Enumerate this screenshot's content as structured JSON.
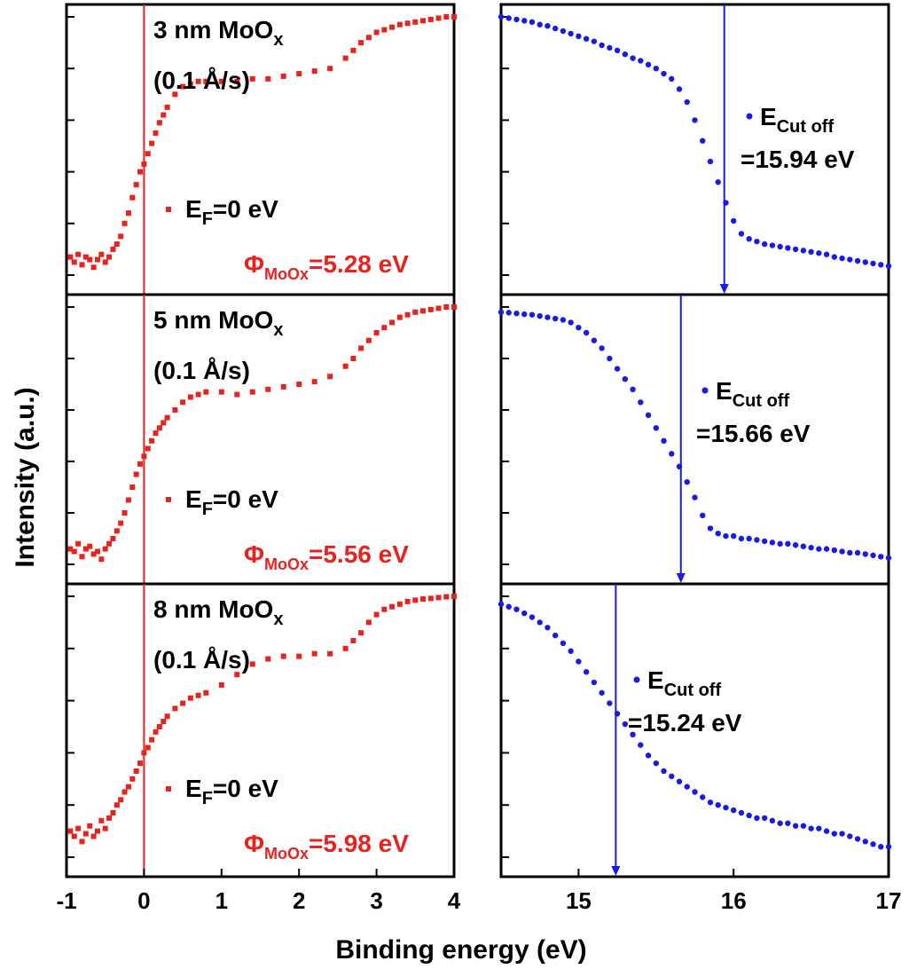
{
  "colors": {
    "left_series": "#e8221c",
    "right_series": "#1a1ae6",
    "frame": "#000000"
  },
  "shared_ylabel": "Intensity (a.u.)",
  "shared_xlabel": "Binding energy (eV)",
  "chart_data": [
    {
      "type": "scatter",
      "column": "left",
      "row": 1,
      "xlim": [
        -1,
        4
      ],
      "ylim": [
        0,
        1
      ],
      "title_main": "3 nm MoO",
      "title_sub": "x",
      "rate": "(0.1 Å/s)",
      "legend_main": "E",
      "legend_sub": "F",
      "legend_rest": "=0 eV",
      "annot_main": "Φ",
      "annot_sub": "MoOx",
      "annot_rest": "=5.28 eV",
      "ref_line_x": 0,
      "points_x": [
        -0.95,
        -0.9,
        -0.85,
        -0.8,
        -0.75,
        -0.7,
        -0.65,
        -0.6,
        -0.55,
        -0.5,
        -0.45,
        -0.4,
        -0.35,
        -0.3,
        -0.25,
        -0.2,
        -0.15,
        -0.1,
        -0.05,
        0.0,
        0.05,
        0.1,
        0.15,
        0.2,
        0.25,
        0.3,
        0.4,
        0.5,
        0.6,
        0.7,
        0.8,
        1.0,
        1.2,
        1.4,
        1.6,
        1.8,
        2.0,
        2.2,
        2.4,
        2.6,
        2.7,
        2.8,
        2.9,
        3.0,
        3.1,
        3.2,
        3.3,
        3.4,
        3.5,
        3.6,
        3.7,
        3.8,
        3.9,
        4.0
      ],
      "points_y": [
        0.07,
        0.05,
        0.08,
        0.04,
        0.07,
        0.06,
        0.03,
        0.06,
        0.08,
        0.05,
        0.07,
        0.1,
        0.12,
        0.15,
        0.2,
        0.24,
        0.3,
        0.35,
        0.4,
        0.43,
        0.47,
        0.51,
        0.55,
        0.59,
        0.62,
        0.65,
        0.7,
        0.73,
        0.74,
        0.75,
        0.75,
        0.75,
        0.75,
        0.76,
        0.76,
        0.77,
        0.78,
        0.79,
        0.8,
        0.84,
        0.87,
        0.9,
        0.92,
        0.94,
        0.95,
        0.96,
        0.97,
        0.975,
        0.98,
        0.985,
        0.99,
        0.995,
        1.0,
        1.0
      ]
    },
    {
      "type": "scatter",
      "column": "left",
      "row": 2,
      "xlim": [
        -1,
        4
      ],
      "ylim": [
        0,
        1
      ],
      "title_main": "5 nm MoO",
      "title_sub": "x",
      "rate": "(0.1 Å/s)",
      "legend_main": "E",
      "legend_sub": "F",
      "legend_rest": "=0 eV",
      "annot_main": "Φ",
      "annot_sub": "MoOx",
      "annot_rest": "=5.56 eV",
      "ref_line_x": 0,
      "points_x": [
        -0.95,
        -0.9,
        -0.85,
        -0.8,
        -0.75,
        -0.7,
        -0.65,
        -0.6,
        -0.55,
        -0.5,
        -0.45,
        -0.4,
        -0.35,
        -0.3,
        -0.25,
        -0.2,
        -0.15,
        -0.1,
        -0.05,
        0.0,
        0.05,
        0.1,
        0.15,
        0.2,
        0.25,
        0.3,
        0.4,
        0.5,
        0.6,
        0.7,
        0.8,
        1.0,
        1.2,
        1.4,
        1.6,
        1.8,
        2.0,
        2.2,
        2.4,
        2.6,
        2.7,
        2.8,
        2.9,
        3.0,
        3.1,
        3.2,
        3.3,
        3.4,
        3.5,
        3.6,
        3.7,
        3.8,
        3.9,
        4.0
      ],
      "points_y": [
        0.06,
        0.05,
        0.08,
        0.03,
        0.06,
        0.07,
        0.04,
        0.05,
        0.02,
        0.06,
        0.08,
        0.1,
        0.13,
        0.16,
        0.2,
        0.25,
        0.3,
        0.35,
        0.39,
        0.42,
        0.45,
        0.48,
        0.51,
        0.53,
        0.55,
        0.57,
        0.6,
        0.63,
        0.65,
        0.66,
        0.67,
        0.67,
        0.66,
        0.67,
        0.68,
        0.69,
        0.7,
        0.71,
        0.73,
        0.77,
        0.8,
        0.84,
        0.87,
        0.9,
        0.92,
        0.94,
        0.96,
        0.97,
        0.98,
        0.985,
        0.99,
        0.995,
        1.0,
        1.0
      ]
    },
    {
      "type": "scatter",
      "column": "left",
      "row": 3,
      "xlim": [
        -1,
        4
      ],
      "ylim": [
        0,
        1
      ],
      "title_main": "8 nm MoO",
      "title_sub": "x",
      "rate": "(0.1 Å/s)",
      "legend_main": "E",
      "legend_sub": "F",
      "legend_rest": "=0 eV",
      "annot_main": "Φ",
      "annot_sub": "MoOx",
      "annot_rest": "=5.98 eV",
      "ref_line_x": 0,
      "points_x": [
        -0.95,
        -0.9,
        -0.85,
        -0.8,
        -0.75,
        -0.7,
        -0.65,
        -0.6,
        -0.55,
        -0.5,
        -0.45,
        -0.4,
        -0.35,
        -0.3,
        -0.25,
        -0.2,
        -0.15,
        -0.1,
        -0.05,
        0.0,
        0.05,
        0.1,
        0.15,
        0.2,
        0.25,
        0.3,
        0.4,
        0.5,
        0.6,
        0.7,
        0.8,
        1.0,
        1.2,
        1.4,
        1.6,
        1.8,
        2.0,
        2.2,
        2.4,
        2.6,
        2.7,
        2.8,
        2.9,
        3.0,
        3.1,
        3.2,
        3.3,
        3.4,
        3.5,
        3.6,
        3.7,
        3.8,
        3.9,
        4.0
      ],
      "points_y": [
        0.1,
        0.08,
        0.11,
        0.06,
        0.09,
        0.12,
        0.08,
        0.1,
        0.14,
        0.11,
        0.15,
        0.17,
        0.2,
        0.22,
        0.25,
        0.27,
        0.3,
        0.33,
        0.36,
        0.4,
        0.42,
        0.45,
        0.48,
        0.5,
        0.52,
        0.54,
        0.57,
        0.59,
        0.61,
        0.62,
        0.63,
        0.66,
        0.7,
        0.74,
        0.76,
        0.77,
        0.77,
        0.78,
        0.78,
        0.8,
        0.83,
        0.86,
        0.9,
        0.93,
        0.95,
        0.96,
        0.97,
        0.98,
        0.985,
        0.99,
        0.992,
        0.995,
        0.998,
        1.0
      ]
    },
    {
      "type": "scatter",
      "column": "right",
      "row": 1,
      "xlim": [
        14.5,
        17
      ],
      "ylim": [
        0,
        1
      ],
      "legend_main": "E",
      "legend_sub": "Cut off",
      "value_text": "=15.94 eV",
      "cutoff_x": 15.94,
      "points_x": [
        14.5,
        14.55,
        14.6,
        14.65,
        14.7,
        14.75,
        14.8,
        14.85,
        14.9,
        14.95,
        15.0,
        15.05,
        15.1,
        15.15,
        15.2,
        15.25,
        15.3,
        15.35,
        15.4,
        15.45,
        15.5,
        15.55,
        15.6,
        15.65,
        15.7,
        15.75,
        15.8,
        15.85,
        15.9,
        15.95,
        16.0,
        16.05,
        16.1,
        16.15,
        16.2,
        16.25,
        16.3,
        16.35,
        16.4,
        16.45,
        16.5,
        16.55,
        16.6,
        16.65,
        16.7,
        16.75,
        16.8,
        16.85,
        16.9,
        16.95,
        17.0
      ],
      "points_y": [
        1.0,
        0.995,
        0.99,
        0.985,
        0.98,
        0.97,
        0.965,
        0.955,
        0.945,
        0.935,
        0.925,
        0.915,
        0.905,
        0.89,
        0.88,
        0.87,
        0.855,
        0.84,
        0.83,
        0.815,
        0.8,
        0.78,
        0.76,
        0.72,
        0.67,
        0.6,
        0.52,
        0.44,
        0.36,
        0.28,
        0.21,
        0.16,
        0.14,
        0.13,
        0.12,
        0.115,
        0.11,
        0.105,
        0.1,
        0.095,
        0.09,
        0.085,
        0.08,
        0.07,
        0.065,
        0.06,
        0.055,
        0.05,
        0.045,
        0.04,
        0.035
      ]
    },
    {
      "type": "scatter",
      "column": "right",
      "row": 2,
      "xlim": [
        14.5,
        17
      ],
      "ylim": [
        0,
        1
      ],
      "legend_main": "E",
      "legend_sub": "Cut off",
      "value_text": "=15.66 eV",
      "cutoff_x": 15.66,
      "points_x": [
        14.5,
        14.55,
        14.6,
        14.65,
        14.7,
        14.75,
        14.8,
        14.85,
        14.9,
        14.95,
        15.0,
        15.05,
        15.1,
        15.15,
        15.2,
        15.25,
        15.3,
        15.35,
        15.4,
        15.45,
        15.5,
        15.55,
        15.6,
        15.65,
        15.7,
        15.75,
        15.8,
        15.85,
        15.9,
        15.95,
        16.0,
        16.05,
        16.1,
        16.15,
        16.2,
        16.25,
        16.3,
        16.35,
        16.4,
        16.45,
        16.5,
        16.55,
        16.6,
        16.65,
        16.7,
        16.75,
        16.8,
        16.85,
        16.9,
        16.95,
        17.0
      ],
      "points_y": [
        0.98,
        0.978,
        0.975,
        0.972,
        0.97,
        0.965,
        0.96,
        0.955,
        0.95,
        0.94,
        0.92,
        0.9,
        0.87,
        0.84,
        0.8,
        0.76,
        0.72,
        0.68,
        0.63,
        0.58,
        0.53,
        0.48,
        0.43,
        0.38,
        0.32,
        0.26,
        0.19,
        0.14,
        0.12,
        0.11,
        0.11,
        0.1,
        0.1,
        0.095,
        0.09,
        0.085,
        0.08,
        0.08,
        0.075,
        0.07,
        0.065,
        0.06,
        0.06,
        0.055,
        0.05,
        0.045,
        0.045,
        0.04,
        0.035,
        0.03,
        0.025
      ]
    },
    {
      "type": "scatter",
      "column": "right",
      "row": 3,
      "xlim": [
        14.5,
        17
      ],
      "ylim": [
        0,
        1
      ],
      "legend_main": "E",
      "legend_sub": "Cut off",
      "value_text": "=15.24 eV",
      "cutoff_x": 15.24,
      "points_x": [
        14.5,
        14.55,
        14.6,
        14.65,
        14.7,
        14.75,
        14.8,
        14.85,
        14.9,
        14.95,
        15.0,
        15.05,
        15.1,
        15.15,
        15.2,
        15.25,
        15.3,
        15.35,
        15.4,
        15.45,
        15.5,
        15.55,
        15.6,
        15.65,
        15.7,
        15.75,
        15.8,
        15.85,
        15.9,
        15.95,
        16.0,
        16.05,
        16.1,
        16.15,
        16.2,
        16.25,
        16.3,
        16.35,
        16.4,
        16.45,
        16.5,
        16.55,
        16.6,
        16.65,
        16.7,
        16.75,
        16.8,
        16.85,
        16.9,
        16.95,
        17.0
      ],
      "points_y": [
        0.97,
        0.96,
        0.95,
        0.935,
        0.92,
        0.9,
        0.88,
        0.85,
        0.82,
        0.79,
        0.75,
        0.71,
        0.67,
        0.63,
        0.59,
        0.55,
        0.51,
        0.47,
        0.43,
        0.39,
        0.36,
        0.33,
        0.31,
        0.29,
        0.27,
        0.25,
        0.23,
        0.21,
        0.2,
        0.19,
        0.18,
        0.17,
        0.16,
        0.15,
        0.15,
        0.14,
        0.13,
        0.13,
        0.12,
        0.12,
        0.11,
        0.11,
        0.1,
        0.09,
        0.09,
        0.08,
        0.07,
        0.06,
        0.05,
        0.04,
        0.04
      ]
    }
  ],
  "x_ticks_left": [
    "-1",
    "0",
    "1",
    "2",
    "3",
    "4"
  ],
  "x_ticks_right": [
    "15",
    "16",
    "17"
  ]
}
